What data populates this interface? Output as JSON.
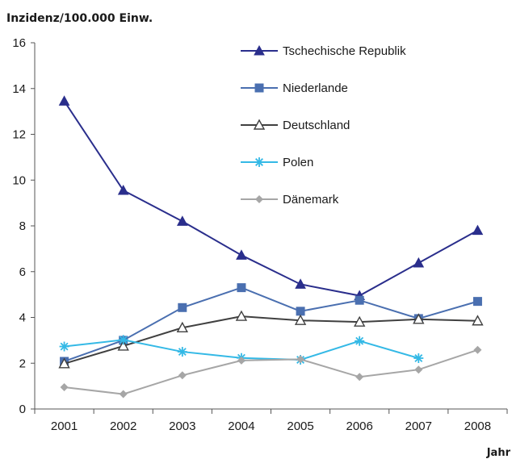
{
  "chart_data": {
    "type": "line",
    "ylabel": "Inzidenz/100.000 Einw.",
    "xlabel": "Jahr",
    "ylim": [
      0,
      16
    ],
    "yticks": [
      0,
      2,
      4,
      6,
      8,
      10,
      12,
      14,
      16
    ],
    "x": [
      "2001",
      "2002",
      "2003",
      "2004",
      "2005",
      "2006",
      "2007",
      "2008"
    ],
    "legend_position": "top-right",
    "grid": false,
    "series": [
      {
        "name": "Tschechische Republik",
        "color": "#2a2e8c",
        "marker": "triangle-filled",
        "values": [
          13.45,
          9.55,
          8.2,
          6.72,
          5.45,
          4.95,
          6.38,
          7.8
        ]
      },
      {
        "name": "Niederlande",
        "color": "#4a6fb0",
        "marker": "square-filled",
        "values": [
          2.08,
          3.0,
          4.43,
          5.3,
          4.27,
          4.75,
          3.95,
          4.7
        ]
      },
      {
        "name": "Deutschland",
        "color": "#404040",
        "marker": "triangle-open",
        "values": [
          1.98,
          2.75,
          3.55,
          4.05,
          3.87,
          3.8,
          3.92,
          3.85
        ]
      },
      {
        "name": "Polen",
        "color": "#34b9e6",
        "marker": "asterisk",
        "values": [
          2.73,
          3.02,
          2.5,
          2.23,
          2.15,
          2.97,
          2.22,
          null
        ]
      },
      {
        "name": "Dänemark",
        "color": "#a6a6a6",
        "marker": "diamond-filled",
        "values": [
          0.95,
          0.65,
          1.47,
          2.12,
          2.17,
          1.4,
          1.72,
          2.58
        ]
      }
    ]
  }
}
